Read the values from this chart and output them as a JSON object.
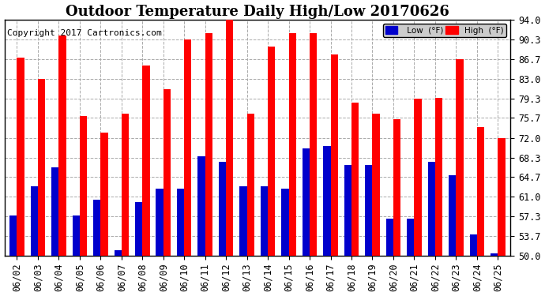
{
  "title": "Outdoor Temperature Daily High/Low 20170626",
  "copyright": "Copyright 2017 Cartronics.com",
  "dates": [
    "06/02",
    "06/03",
    "06/04",
    "06/05",
    "06/06",
    "06/07",
    "06/08",
    "06/09",
    "06/10",
    "06/11",
    "06/12",
    "06/13",
    "06/14",
    "06/15",
    "06/16",
    "06/17",
    "06/18",
    "06/19",
    "06/20",
    "06/21",
    "06/22",
    "06/23",
    "06/24",
    "06/25"
  ],
  "high": [
    87.0,
    83.0,
    91.0,
    76.0,
    73.0,
    76.5,
    85.5,
    81.0,
    90.3,
    91.5,
    94.0,
    76.5,
    89.0,
    91.5,
    91.5,
    87.5,
    78.5,
    76.5,
    75.5,
    79.3,
    79.5,
    86.7,
    74.0,
    72.0
  ],
  "low": [
    57.5,
    63.0,
    66.5,
    57.5,
    60.5,
    51.0,
    60.0,
    62.5,
    62.5,
    68.5,
    67.5,
    63.0,
    63.0,
    62.5,
    70.0,
    70.5,
    67.0,
    67.0,
    57.0,
    57.0,
    67.5,
    65.0,
    54.0,
    50.5
  ],
  "y_ticks": [
    50.0,
    53.7,
    57.3,
    61.0,
    64.7,
    68.3,
    72.0,
    75.7,
    79.3,
    83.0,
    86.7,
    90.3,
    94.0
  ],
  "ymin": 50.0,
  "ymax": 94.0,
  "bar_width": 0.35,
  "high_color": "#ff0000",
  "low_color": "#0000cc",
  "bg_color": "#ffffff",
  "grid_color": "#aaaaaa",
  "title_fontsize": 13,
  "copyright_fontsize": 8,
  "tick_fontsize": 8.5
}
